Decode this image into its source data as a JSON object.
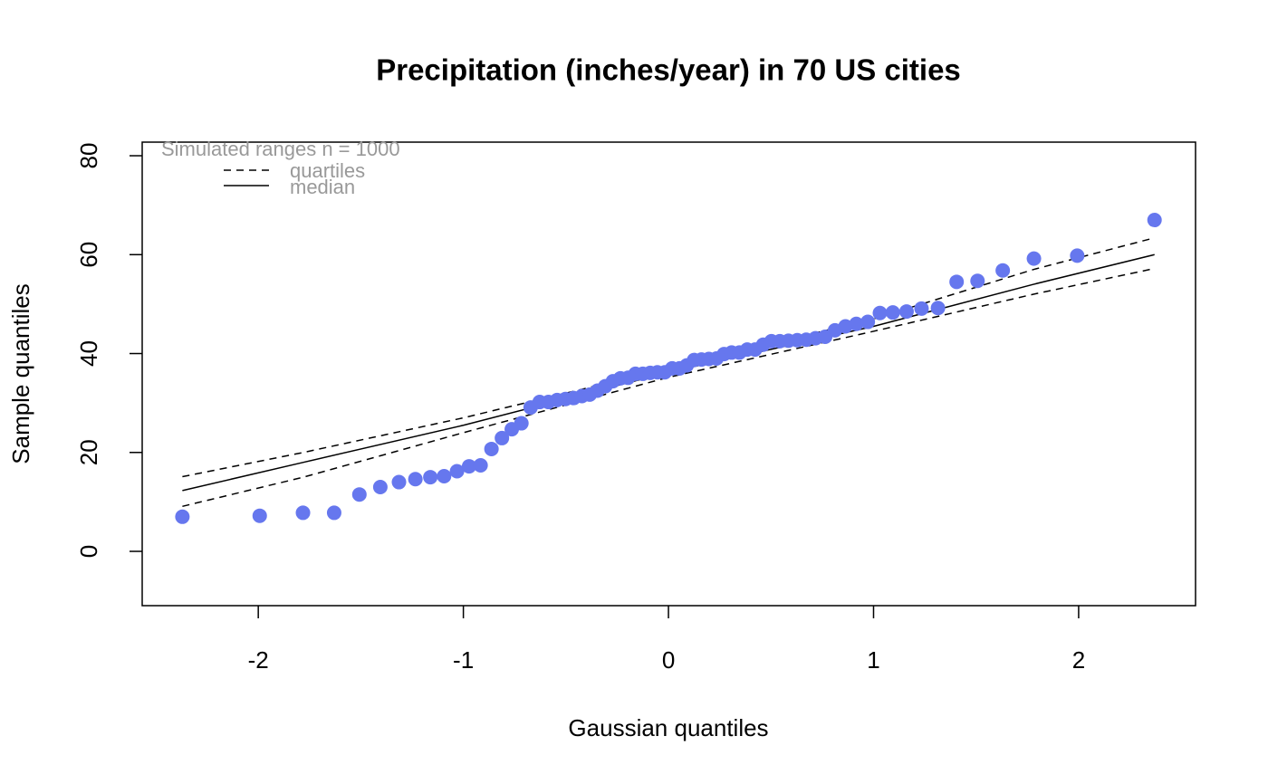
{
  "chart_data": {
    "type": "scatter",
    "title": "Precipitation (inches/year) in 70 US cities",
    "x_label": "Gaussian quantiles",
    "y_label": "Sample quantiles",
    "xlim": [
      -2.566,
      2.57
    ],
    "ylim": [
      -10.98,
      82.75
    ],
    "xticks": [
      -2,
      -1,
      0,
      1,
      2
    ],
    "yticks": [
      0,
      20,
      40,
      60,
      80
    ],
    "color": "#6677ee",
    "x": [
      -2.37,
      -1.993,
      -1.782,
      -1.63,
      -1.507,
      -1.405,
      -1.314,
      -1.234,
      -1.161,
      -1.094,
      -1.031,
      -0.972,
      -0.916,
      -0.863,
      -0.812,
      -0.764,
      -0.717,
      -0.672,
      -0.628,
      -0.585,
      -0.543,
      -0.502,
      -0.462,
      -0.422,
      -0.384,
      -0.346,
      -0.308,
      -0.271,
      -0.234,
      -0.197,
      -0.161,
      -0.125,
      -0.089,
      -0.054,
      -0.018,
      0.018,
      0.054,
      0.089,
      0.125,
      0.161,
      0.197,
      0.234,
      0.271,
      0.308,
      0.346,
      0.384,
      0.422,
      0.462,
      0.502,
      0.543,
      0.585,
      0.628,
      0.672,
      0.717,
      0.764,
      0.812,
      0.863,
      0.916,
      0.972,
      1.031,
      1.094,
      1.161,
      1.234,
      1.314,
      1.405,
      1.507,
      1.63,
      1.782,
      1.993,
      2.37
    ],
    "values": [
      7.0,
      7.2,
      7.8,
      7.8,
      11.5,
      13.0,
      14.0,
      14.6,
      15.0,
      15.2,
      16.2,
      17.2,
      17.4,
      20.7,
      22.9,
      24.7,
      25.9,
      29.1,
      30.2,
      30.2,
      30.6,
      30.8,
      31.0,
      31.4,
      31.7,
      32.5,
      33.4,
      34.4,
      35.0,
      35.1,
      35.9,
      35.9,
      36.1,
      36.2,
      36.2,
      37.0,
      37.0,
      37.6,
      38.7,
      38.8,
      38.9,
      39.0,
      39.9,
      40.2,
      40.2,
      40.8,
      40.8,
      41.8,
      42.5,
      42.5,
      42.6,
      42.7,
      42.8,
      43.1,
      43.4,
      44.7,
      45.5,
      46.0,
      46.4,
      48.2,
      48.3,
      48.5,
      49.1,
      49.2,
      54.5,
      54.7,
      56.8,
      59.2,
      59.8,
      67.0
    ],
    "legend_title": "Simulated ranges n = 1000",
    "line_x": [
      -2.37,
      -1.78,
      -1.0,
      0.0,
      1.0,
      1.78,
      2.37
    ],
    "quartiles": {
      "name": "quartiles",
      "lower": [
        9.1,
        15.0,
        24.0,
        35.2,
        44.5,
        52.0,
        57.2
      ],
      "upper": [
        15.1,
        20.0,
        27.0,
        37.0,
        47.0,
        57.0,
        63.4
      ]
    },
    "median": {
      "name": "median",
      "values": [
        12.3,
        18.0,
        25.5,
        36.2,
        45.5,
        54.0,
        60.0
      ]
    }
  }
}
